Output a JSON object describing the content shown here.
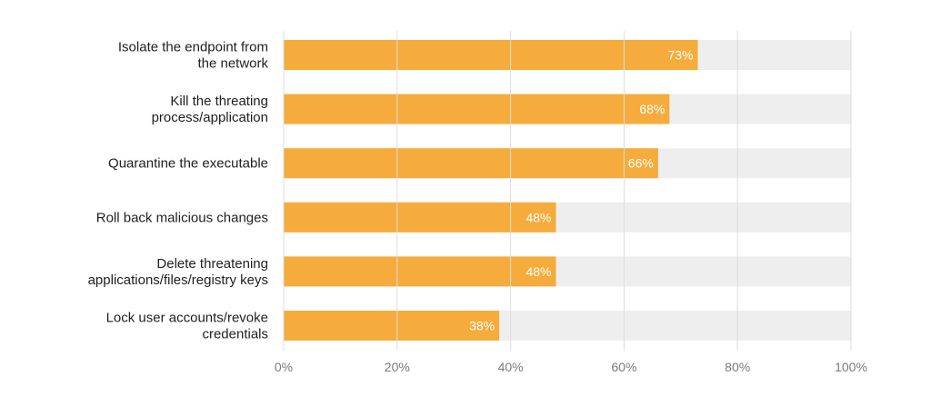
{
  "chart_data": {
    "type": "bar",
    "orientation": "horizontal",
    "categories": [
      [
        "Isolate the endpoint from",
        "the network"
      ],
      [
        "Kill the threating",
        "process/application"
      ],
      [
        "Quarantine the executable"
      ],
      [
        "Roll back malicious changes"
      ],
      [
        "Delete threatening",
        "applications/files/registry keys"
      ],
      [
        "Lock user accounts/revoke",
        "credentials"
      ]
    ],
    "values": [
      73,
      68,
      66,
      48,
      48,
      38
    ],
    "value_labels": [
      "73%",
      "68%",
      "66%",
      "48%",
      "48%",
      "38%"
    ],
    "xlim": [
      0,
      100
    ],
    "x_ticks": [
      "0%",
      "20%",
      "40%",
      "60%",
      "80%",
      "100%"
    ],
    "grid": true,
    "colors": {
      "bar": "#F5AC3C",
      "track": "#EEEEEE",
      "grid": "#DDDDDD"
    }
  }
}
